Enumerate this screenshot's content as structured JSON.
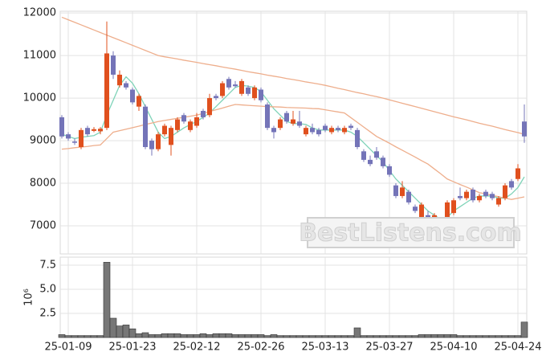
{
  "chart_data": {
    "type": "candlestick",
    "categories": [
      null,
      "25-01-09",
      null,
      null,
      null,
      null,
      null,
      null,
      null,
      null,
      null,
      "25-01-23",
      null,
      null,
      null,
      null,
      null,
      null,
      null,
      null,
      null,
      "25-02-12",
      null,
      null,
      null,
      null,
      null,
      null,
      null,
      null,
      null,
      "25-02-26",
      null,
      null,
      null,
      null,
      null,
      null,
      null,
      null,
      null,
      "25-03-13",
      null,
      null,
      null,
      null,
      null,
      null,
      null,
      null,
      null,
      "25-03-27",
      null,
      null,
      null,
      null,
      null,
      null,
      null,
      null,
      null,
      "25-04-10",
      null,
      null,
      null,
      null,
      null,
      null,
      null,
      null,
      null,
      "25-04-24",
      null
    ],
    "open": [
      9550,
      9150,
      8980,
      8850,
      9300,
      9230,
      9220,
      9300,
      11000,
      10300,
      10350,
      10200,
      9800,
      9800,
      9000,
      8800,
      9150,
      8900,
      9250,
      9600,
      9250,
      9350,
      9700,
      9600,
      10050,
      10050,
      10450,
      10320,
      10100,
      10250,
      10000,
      10200,
      9850,
      9300,
      9300,
      9650,
      9400,
      9450,
      9150,
      9300,
      9250,
      9350,
      9200,
      9300,
      9200,
      9350,
      9250,
      8750,
      8550,
      8750,
      8600,
      8400,
      7950,
      7700,
      7800,
      7450,
      7200,
      7250,
      7050,
      7150,
      7200,
      7300,
      7700,
      7650,
      7850,
      7600,
      7800,
      7750,
      7500,
      7650,
      8050,
      8100,
      9450
    ],
    "high": [
      9600,
      9200,
      9050,
      9300,
      9350,
      9320,
      9320,
      11800,
      11100,
      10650,
      10400,
      10250,
      10100,
      9850,
      9050,
      9200,
      9400,
      9350,
      9550,
      9650,
      9500,
      9650,
      9750,
      10100,
      10100,
      10400,
      10500,
      10400,
      10450,
      10300,
      10300,
      10250,
      9900,
      9350,
      9550,
      9700,
      9700,
      9700,
      9350,
      9400,
      9300,
      9400,
      9350,
      9350,
      9350,
      9400,
      9300,
      8800,
      8650,
      8850,
      8650,
      8450,
      8000,
      8050,
      7850,
      7500,
      7550,
      7350,
      7300,
      7200,
      7600,
      7650,
      7900,
      7850,
      7900,
      7750,
      7850,
      7800,
      7700,
      8000,
      8100,
      8450,
      9850
    ],
    "low": [
      9050,
      9000,
      8900,
      8800,
      9100,
      9200,
      9150,
      9250,
      10450,
      10250,
      10200,
      9850,
      9700,
      8800,
      8650,
      8750,
      9100,
      8650,
      9200,
      9400,
      9200,
      9300,
      9500,
      9550,
      9950,
      10000,
      10200,
      10250,
      10050,
      10050,
      9950,
      9900,
      9250,
      9050,
      9250,
      9400,
      9350,
      9300,
      9100,
      9150,
      9100,
      9200,
      9150,
      9200,
      9150,
      9250,
      8800,
      8500,
      8400,
      8550,
      8350,
      8150,
      7650,
      7650,
      7500,
      7300,
      7150,
      6800,
      7000,
      6750,
      7150,
      7250,
      7600,
      7600,
      7550,
      7550,
      7650,
      7600,
      7450,
      7600,
      7850,
      8050,
      8950
    ],
    "close": [
      9100,
      9050,
      8950,
      9250,
      9150,
      9270,
      9280,
      11050,
      10550,
      10550,
      10250,
      9900,
      10050,
      8850,
      8800,
      9150,
      9350,
      9300,
      9500,
      9450,
      9450,
      9550,
      9550,
      10000,
      10000,
      10350,
      10250,
      10280,
      10400,
      10100,
      10250,
      9950,
      9300,
      9200,
      9500,
      9450,
      9500,
      9350,
      9300,
      9200,
      9150,
      9250,
      9300,
      9250,
      9300,
      9300,
      8850,
      8550,
      8450,
      8600,
      8400,
      8200,
      7700,
      7900,
      7550,
      7350,
      7500,
      6850,
      7250,
      6800,
      7550,
      7600,
      7650,
      7800,
      7600,
      7700,
      7700,
      7650,
      7650,
      7950,
      7900,
      8350,
      9100
    ],
    "up_color": "#e0501e",
    "down_color": "#7474b8",
    "ylim": [
      6340,
      12040
    ],
    "yticks": [
      7000,
      8000,
      9000,
      10000,
      11000,
      12000
    ],
    "grid": true,
    "lines": [
      {
        "color": "#7fd3b8",
        "values": [
          9150,
          9100,
          9050,
          9080,
          9100,
          9120,
          9200,
          9600,
          9950,
          10300,
          10500,
          10350,
          10100,
          9800,
          9500,
          9200,
          9050,
          9100,
          9200,
          9300,
          9380,
          9450,
          9550,
          9650,
          9800,
          9950,
          10100,
          10250,
          10300,
          10280,
          10250,
          10150,
          9950,
          9750,
          9600,
          9450,
          9400,
          9400,
          9380,
          9300,
          9250,
          9250,
          9250,
          9250,
          9250,
          9200,
          9100,
          8950,
          8800,
          8650,
          8500,
          8300,
          8100,
          7950,
          7800,
          7650,
          7500,
          7350,
          7250,
          7150,
          7200,
          7350,
          7450,
          7550,
          7650,
          7700,
          7700,
          7700,
          7650,
          7650,
          7750,
          7900,
          8150
        ]
      },
      {
        "color": "#eeae8c",
        "values": [
          8800,
          8815,
          8835,
          8850,
          8865,
          8885,
          8900,
          9050,
          9200,
          9235,
          9270,
          9305,
          9340,
          9380,
          9415,
          9450,
          9475,
          9500,
          9525,
          9550,
          9575,
          9600,
          9640,
          9685,
          9725,
          9765,
          9810,
          9850,
          9840,
          9830,
          9820,
          9810,
          9800,
          9795,
          9790,
          9780,
          9775,
          9770,
          9765,
          9755,
          9750,
          9725,
          9700,
          9675,
          9650,
          9540,
          9430,
          9320,
          9210,
          9100,
          9020,
          8940,
          8855,
          8775,
          8695,
          8615,
          8530,
          8450,
          8335,
          8220,
          8100,
          8035,
          7970,
          7910,
          7845,
          7780,
          7750,
          7715,
          7685,
          7650,
          7620,
          7650,
          7680
        ]
      },
      {
        "color": "#eeae8c",
        "values": [
          11900,
          11840,
          11780,
          11720,
          11660,
          11600,
          11540,
          11480,
          11420,
          11360,
          11300,
          11240,
          11180,
          11120,
          11060,
          11000,
          10970,
          10945,
          10920,
          10890,
          10865,
          10840,
          10810,
          10785,
          10760,
          10730,
          10705,
          10680,
          10650,
          10620,
          10595,
          10570,
          10540,
          10515,
          10490,
          10460,
          10435,
          10410,
          10380,
          10355,
          10330,
          10300,
          10265,
          10230,
          10200,
          10165,
          10130,
          10100,
          10065,
          10035,
          10000,
          9960,
          9920,
          9880,
          9840,
          9800,
          9760,
          9720,
          9680,
          9640,
          9600,
          9560,
          9525,
          9490,
          9450,
          9410,
          9375,
          9340,
          9300,
          9260,
          9225,
          9190,
          9150
        ]
      }
    ],
    "volume": {
      "type": "bar",
      "color": "#777777",
      "values": [
        0.3,
        0.2,
        0.2,
        0.2,
        0.2,
        0.2,
        0.2,
        7.8,
        2.0,
        1.2,
        1.3,
        0.9,
        0.4,
        0.5,
        0.3,
        0.3,
        0.4,
        0.4,
        0.4,
        0.3,
        0.3,
        0.3,
        0.4,
        0.3,
        0.4,
        0.4,
        0.4,
        0.3,
        0.3,
        0.3,
        0.3,
        0.3,
        0.2,
        0.3,
        0.2,
        0.2,
        0.2,
        0.2,
        0.2,
        0.2,
        0.2,
        0.2,
        0.2,
        0.2,
        0.2,
        0.2,
        1.0,
        0.2,
        0.2,
        0.2,
        0.2,
        0.2,
        0.2,
        0.2,
        0.2,
        0.2,
        0.3,
        0.3,
        0.3,
        0.3,
        0.3,
        0.3,
        0.2,
        0.2,
        0.2,
        0.2,
        0.2,
        0.2,
        0.2,
        0.2,
        0.2,
        0.2,
        1.6
      ],
      "ylim": [
        0,
        8.33
      ],
      "yticks": [
        2.5,
        {
          "value": 5,
          "label": "5.0"
        },
        7.5
      ],
      "offset_label": "10⁶"
    },
    "watermark": "BestListens.com"
  }
}
